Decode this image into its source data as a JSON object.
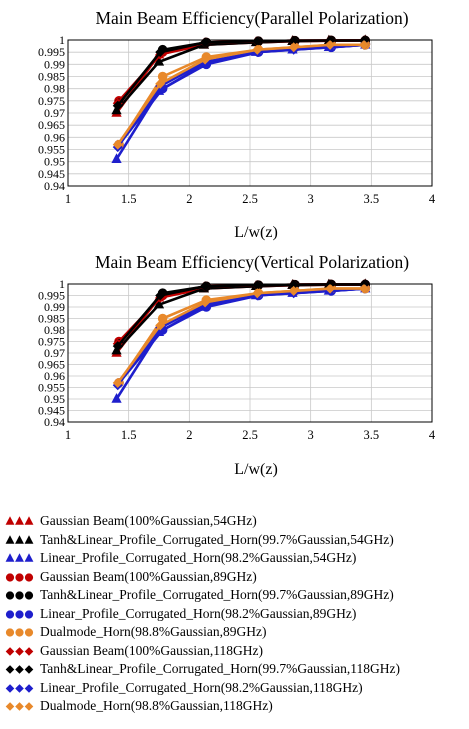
{
  "chart_data": [
    {
      "type": "line",
      "title": "Main Beam Efficiency(Parallel Polarization)",
      "xlabel": "L/w(z)",
      "ylabel": "",
      "xlim": [
        1,
        4
      ],
      "ylim": [
        0.94,
        1
      ],
      "x_ticks": [
        "1",
        "1.5",
        "2",
        "2.5",
        "3",
        "3.5",
        "4"
      ],
      "y_ticks": [
        "0.94",
        "0.945",
        "0.95",
        "0.955",
        "0.96",
        "0.965",
        "0.97",
        "0.975",
        "0.98",
        "0.985",
        "0.99",
        "0.995",
        "1"
      ],
      "grid": true,
      "series": [
        {
          "name": "Gaussian Beam(100%Gaussian,54GHz)",
          "color": "#c00000",
          "marker": "triangle",
          "x": [
            1.4,
            1.75,
            2.12,
            2.55,
            2.85,
            3.15,
            3.45
          ],
          "y": [
            0.97,
            0.994,
            0.998,
            0.999,
            0.9995,
            0.9997,
            0.9998
          ]
        },
        {
          "name": "Tanh&Linear_Profile_Corrugated_Horn(99.7%Gaussian,54GHz)",
          "color": "#000000",
          "marker": "triangle",
          "x": [
            1.4,
            1.75,
            2.12,
            2.55,
            2.85,
            3.15,
            3.45
          ],
          "y": [
            0.971,
            0.991,
            0.998,
            0.999,
            0.9995,
            0.9997,
            0.9998
          ]
        },
        {
          "name": "Linear_Profile_Corrugated_Horn(98.2%Gaussian,54GHz)",
          "color": "#1f1fcc",
          "marker": "triangle",
          "x": [
            1.4,
            1.75,
            2.12,
            2.55,
            2.85,
            3.15,
            3.45
          ],
          "y": [
            0.951,
            0.979,
            0.99,
            0.995,
            0.996,
            0.997,
            0.998
          ]
        },
        {
          "name": "Gaussian Beam(100%Gaussian,89GHz)",
          "color": "#c00000",
          "marker": "circle",
          "x": [
            1.42,
            1.78,
            2.14,
            2.57,
            2.87,
            3.17,
            3.45
          ],
          "y": [
            0.975,
            0.995,
            0.999,
            0.9995,
            0.9997,
            0.9998,
            0.9998
          ]
        },
        {
          "name": "Tanh&Linear_Profile_Corrugated_Horn(99.7%Gaussian,89GHz)",
          "color": "#000000",
          "marker": "circle",
          "x": [
            1.42,
            1.78,
            2.14,
            2.57,
            2.87,
            3.17,
            3.45
          ],
          "y": [
            0.974,
            0.996,
            0.999,
            0.9995,
            0.9997,
            0.9998,
            0.9998
          ]
        },
        {
          "name": "Linear_Profile_Corrugated_Horn(98.2%Gaussian,89GHz)",
          "color": "#1f1fcc",
          "marker": "circle",
          "x": [
            1.42,
            1.78,
            2.14,
            2.57,
            2.87,
            3.17,
            3.45
          ],
          "y": [
            0.957,
            0.98,
            0.99,
            0.995,
            0.997,
            0.997,
            0.998
          ]
        },
        {
          "name": "Dualmode_Horn(98.8%Gaussian,89GHz)",
          "color": "#e8892b",
          "marker": "circle",
          "x": [
            1.42,
            1.78,
            2.14,
            2.57,
            2.87,
            3.17,
            3.45
          ],
          "y": [
            0.957,
            0.985,
            0.993,
            0.996,
            0.997,
            0.998,
            0.998
          ]
        },
        {
          "name": "Gaussian Beam(100%Gaussian,118GHz)",
          "color": "#c00000",
          "marker": "diamond",
          "x": [
            1.41,
            1.76,
            2.13,
            2.56,
            2.86,
            3.16,
            3.44
          ],
          "y": [
            0.974,
            0.994,
            0.999,
            0.9995,
            0.9997,
            0.9998,
            0.9998
          ]
        },
        {
          "name": "Tanh&Linear_Profile_Corrugated_Horn(99.7%Gaussian,118GHz)",
          "color": "#000000",
          "marker": "diamond",
          "x": [
            1.41,
            1.76,
            2.13,
            2.56,
            2.86,
            3.16,
            3.44
          ],
          "y": [
            0.973,
            0.995,
            0.999,
            0.9995,
            0.9997,
            0.9998,
            0.9998
          ]
        },
        {
          "name": "Linear_Profile_Corrugated_Horn(98.2%Gaussian,118GHz)",
          "color": "#1f1fcc",
          "marker": "diamond",
          "x": [
            1.41,
            1.76,
            2.13,
            2.56,
            2.86,
            3.16,
            3.44
          ],
          "y": [
            0.956,
            0.981,
            0.991,
            0.995,
            0.996,
            0.997,
            0.998
          ]
        },
        {
          "name": "Dualmode_Horn(98.8%Gaussian,118GHz)",
          "color": "#e8892b",
          "marker": "diamond",
          "x": [
            1.41,
            1.76,
            2.13,
            2.56,
            2.86,
            3.16,
            3.44
          ],
          "y": [
            0.957,
            0.982,
            0.992,
            0.996,
            0.997,
            0.998,
            0.998
          ]
        }
      ]
    },
    {
      "type": "line",
      "title": "Main Beam Efficiency(Vertical Polarization)",
      "xlabel": "L/w(z)",
      "ylabel": "",
      "xlim": [
        1,
        4
      ],
      "ylim": [
        0.94,
        1
      ],
      "x_ticks": [
        "1",
        "1.5",
        "2",
        "2.5",
        "3",
        "3.5",
        "4"
      ],
      "y_ticks": [
        "0.94",
        "0.945",
        "0.95",
        "0.955",
        "0.96",
        "0.965",
        "0.97",
        "0.975",
        "0.98",
        "0.985",
        "0.99",
        "0.995",
        "1"
      ],
      "grid": true,
      "series": [
        {
          "name": "Gaussian Beam(100%Gaussian,54GHz)",
          "color": "#c00000",
          "marker": "triangle",
          "x": [
            1.4,
            1.75,
            2.12,
            2.55,
            2.85,
            3.15,
            3.45
          ],
          "y": [
            0.97,
            0.994,
            0.998,
            0.999,
            0.9995,
            0.9997,
            0.9998
          ]
        },
        {
          "name": "Tanh&Linear_Profile_Corrugated_Horn(99.7%Gaussian,54GHz)",
          "color": "#000000",
          "marker": "triangle",
          "x": [
            1.4,
            1.75,
            2.12,
            2.55,
            2.85,
            3.15,
            3.45
          ],
          "y": [
            0.971,
            0.991,
            0.998,
            0.999,
            0.9995,
            0.9997,
            0.9998
          ]
        },
        {
          "name": "Linear_Profile_Corrugated_Horn(98.2%Gaussian,54GHz)",
          "color": "#1f1fcc",
          "marker": "triangle",
          "x": [
            1.4,
            1.75,
            2.12,
            2.55,
            2.85,
            3.15,
            3.45
          ],
          "y": [
            0.95,
            0.979,
            0.99,
            0.995,
            0.996,
            0.997,
            0.998
          ]
        },
        {
          "name": "Gaussian Beam(100%Gaussian,89GHz)",
          "color": "#c00000",
          "marker": "circle",
          "x": [
            1.42,
            1.78,
            2.14,
            2.57,
            2.87,
            3.17,
            3.45
          ],
          "y": [
            0.975,
            0.995,
            0.999,
            0.9995,
            0.9997,
            0.9998,
            0.9998
          ]
        },
        {
          "name": "Tanh&Linear_Profile_Corrugated_Horn(99.7%Gaussian,89GHz)",
          "color": "#000000",
          "marker": "circle",
          "x": [
            1.42,
            1.78,
            2.14,
            2.57,
            2.87,
            3.17,
            3.45
          ],
          "y": [
            0.974,
            0.996,
            0.999,
            0.9995,
            0.9997,
            0.9998,
            0.9998
          ]
        },
        {
          "name": "Linear_Profile_Corrugated_Horn(98.2%Gaussian,89GHz)",
          "color": "#1f1fcc",
          "marker": "circle",
          "x": [
            1.42,
            1.78,
            2.14,
            2.57,
            2.87,
            3.17,
            3.45
          ],
          "y": [
            0.957,
            0.98,
            0.99,
            0.995,
            0.997,
            0.997,
            0.998
          ]
        },
        {
          "name": "Dualmode_Horn(98.8%Gaussian,89GHz)",
          "color": "#e8892b",
          "marker": "circle",
          "x": [
            1.42,
            1.78,
            2.14,
            2.57,
            2.87,
            3.17,
            3.45
          ],
          "y": [
            0.957,
            0.985,
            0.993,
            0.996,
            0.997,
            0.998,
            0.998
          ]
        },
        {
          "name": "Gaussian Beam(100%Gaussian,118GHz)",
          "color": "#c00000",
          "marker": "diamond",
          "x": [
            1.41,
            1.76,
            2.13,
            2.56,
            2.86,
            3.16,
            3.44
          ],
          "y": [
            0.974,
            0.994,
            0.999,
            0.9995,
            0.9997,
            0.9998,
            0.9998
          ]
        },
        {
          "name": "Tanh&Linear_Profile_Corrugated_Horn(99.7%Gaussian,118GHz)",
          "color": "#000000",
          "marker": "diamond",
          "x": [
            1.41,
            1.76,
            2.13,
            2.56,
            2.86,
            3.16,
            3.44
          ],
          "y": [
            0.973,
            0.995,
            0.999,
            0.9995,
            0.9997,
            0.9998,
            0.9998
          ]
        },
        {
          "name": "Linear_Profile_Corrugated_Horn(98.2%Gaussian,118GHz)",
          "color": "#1f1fcc",
          "marker": "diamond",
          "x": [
            1.41,
            1.76,
            2.13,
            2.56,
            2.86,
            3.16,
            3.44
          ],
          "y": [
            0.956,
            0.981,
            0.991,
            0.995,
            0.996,
            0.997,
            0.998
          ]
        },
        {
          "name": "Dualmode_Horn(98.8%Gaussian,118GHz)",
          "color": "#e8892b",
          "marker": "diamond",
          "x": [
            1.41,
            1.76,
            2.13,
            2.56,
            2.86,
            3.16,
            3.44
          ],
          "y": [
            0.957,
            0.982,
            0.992,
            0.996,
            0.997,
            0.998,
            0.998
          ]
        }
      ]
    }
  ],
  "legend": {
    "entries": [
      {
        "label": "Gaussian Beam(100%Gaussian,54GHz)",
        "color": "#c00000",
        "marker": "triangle"
      },
      {
        "label": "Tanh&Linear_Profile_Corrugated_Horn(99.7%Gaussian,54GHz)",
        "color": "#000000",
        "marker": "triangle"
      },
      {
        "label": "Linear_Profile_Corrugated_Horn(98.2%Gaussian,54GHz)",
        "color": "#1f1fcc",
        "marker": "triangle"
      },
      {
        "label": "Gaussian Beam(100%Gaussian,89GHz)",
        "color": "#c00000",
        "marker": "circle"
      },
      {
        "label": "Tanh&Linear_Profile_Corrugated_Horn(99.7%Gaussian,89GHz)",
        "color": "#000000",
        "marker": "circle"
      },
      {
        "label": "Linear_Profile_Corrugated_Horn(98.2%Gaussian,89GHz)",
        "color": "#1f1fcc",
        "marker": "circle"
      },
      {
        "label": "Dualmode_Horn(98.8%Gaussian,89GHz)",
        "color": "#e8892b",
        "marker": "circle"
      },
      {
        "label": "Gaussian Beam(100%Gaussian,118GHz)",
        "color": "#c00000",
        "marker": "diamond"
      },
      {
        "label": "Tanh&Linear_Profile_Corrugated_Horn(99.7%Gaussian,118GHz)",
        "color": "#000000",
        "marker": "diamond"
      },
      {
        "label": "Linear_Profile_Corrugated_Horn(98.2%Gaussian,118GHz)",
        "color": "#1f1fcc",
        "marker": "diamond"
      },
      {
        "label": "Dualmode_Horn(98.8%Gaussian,118GHz)",
        "color": "#e8892b",
        "marker": "diamond"
      }
    ]
  }
}
